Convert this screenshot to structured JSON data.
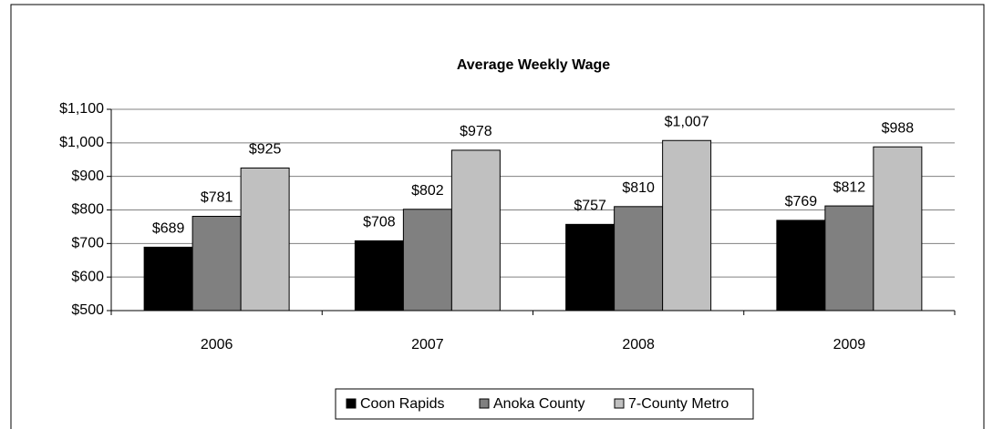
{
  "chart_data": {
    "type": "bar",
    "title": "Average Weekly Wage",
    "categories": [
      "2006",
      "2007",
      "2008",
      "2009"
    ],
    "series": [
      {
        "name": "Coon Rapids",
        "color": "#000000",
        "values": [
          689,
          708,
          757,
          769
        ],
        "value_labels": [
          "$689",
          "$708",
          "$757",
          "$769"
        ]
      },
      {
        "name": "Anoka County",
        "color": "#808080",
        "values": [
          781,
          802,
          810,
          812
        ],
        "value_labels": [
          "$781",
          "$802",
          "$810",
          "$812"
        ]
      },
      {
        "name": "7-County Metro",
        "color": "#c0c0c0",
        "values": [
          925,
          978,
          1007,
          988
        ],
        "value_labels": [
          "$925",
          "$978",
          "$1,007",
          "$988"
        ]
      }
    ],
    "ylim": [
      500,
      1100
    ],
    "yticks": [
      {
        "value": 500,
        "label": "$500"
      },
      {
        "value": 600,
        "label": "$600"
      },
      {
        "value": 700,
        "label": "$700"
      },
      {
        "value": 800,
        "label": "$800"
      },
      {
        "value": 900,
        "label": "$900"
      },
      {
        "value": 1000,
        "label": "$1,000"
      },
      {
        "value": 1100,
        "label": "$1,100"
      }
    ],
    "grid": true,
    "legend": "bottom"
  }
}
